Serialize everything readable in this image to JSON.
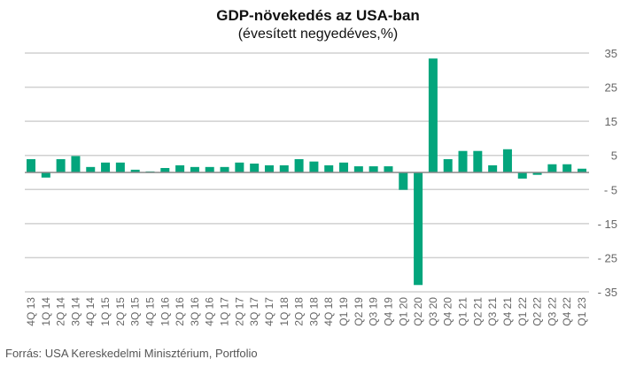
{
  "chart_data": {
    "type": "bar",
    "title": "GDP-növekedés az USA-ban",
    "subtitle": "(évesített negyedéves,%)",
    "source": "Forrás: USA Kereskedelmi Minisztérium, Portfolio",
    "categories": [
      "4Q 13",
      "1Q 14",
      "2Q 14",
      "3Q 14",
      "4Q 14",
      "1Q 15",
      "2Q 15",
      "3Q 15",
      "4Q 15",
      "1Q 16",
      "2Q 16",
      "3Q 16",
      "4Q 16",
      "1Q 17",
      "2Q 17",
      "3Q 17",
      "4Q 17",
      "1Q 18",
      "2Q 18",
      "3Q 18",
      "4Q 18",
      "Q1 19",
      "Q2 19",
      "Q3 19",
      "Q4 19",
      "Q1 20",
      "Q2 20",
      "Q3 20",
      "Q4 20",
      "Q1 21",
      "Q2 21",
      "Q3 21",
      "Q4 21",
      "Q1 22",
      "Q2 22",
      "Q3 22",
      "Q4 22",
      "Q1 23"
    ],
    "values": [
      3.9,
      -1.5,
      3.9,
      4.8,
      1.6,
      2.9,
      2.9,
      0.8,
      0.3,
      1.3,
      2.1,
      1.6,
      1.6,
      1.6,
      2.9,
      2.6,
      2.1,
      2.1,
      3.9,
      3.2,
      2.1,
      2.9,
      1.8,
      1.8,
      1.8,
      -5.1,
      -33.0,
      33.4,
      3.9,
      6.3,
      6.3,
      2.1,
      6.8,
      -1.8,
      -0.7,
      2.4,
      2.4,
      1.1
    ],
    "yticks": [
      35,
      25,
      15,
      5,
      -5,
      -15,
      -25,
      -35
    ],
    "ytick_labels": [
      "35",
      "25",
      "15",
      "5",
      "- 5",
      "- 15",
      "- 25",
      "- 35"
    ],
    "ylim": [
      -35,
      35
    ],
    "grid": true,
    "legend": "none",
    "color": "#03a57c"
  }
}
